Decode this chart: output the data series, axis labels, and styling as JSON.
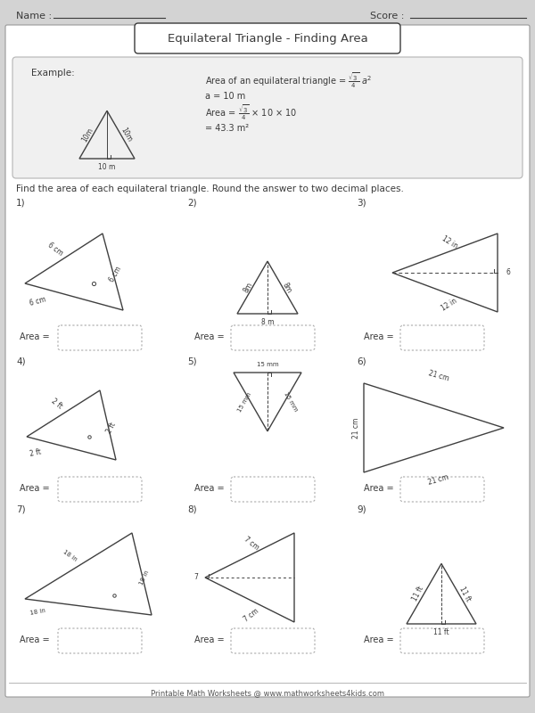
{
  "title": "Equilateral Triangle - Finding Area",
  "name_label": "Name :",
  "score_label": "Score :",
  "instruction": "Find the area of each equilateral triangle. Round the answer to two decimal places.",
  "example_label": "Example:",
  "footer": "Printable Math Worksheets @ www.mathworksheets4kids.com",
  "bg_color": "#d3d3d3",
  "panel_color": "#f0f0f0",
  "white": "#ffffff",
  "text_color": "#3a3a3a",
  "line_color": "#404040",
  "box_border": "#aaaaaa"
}
